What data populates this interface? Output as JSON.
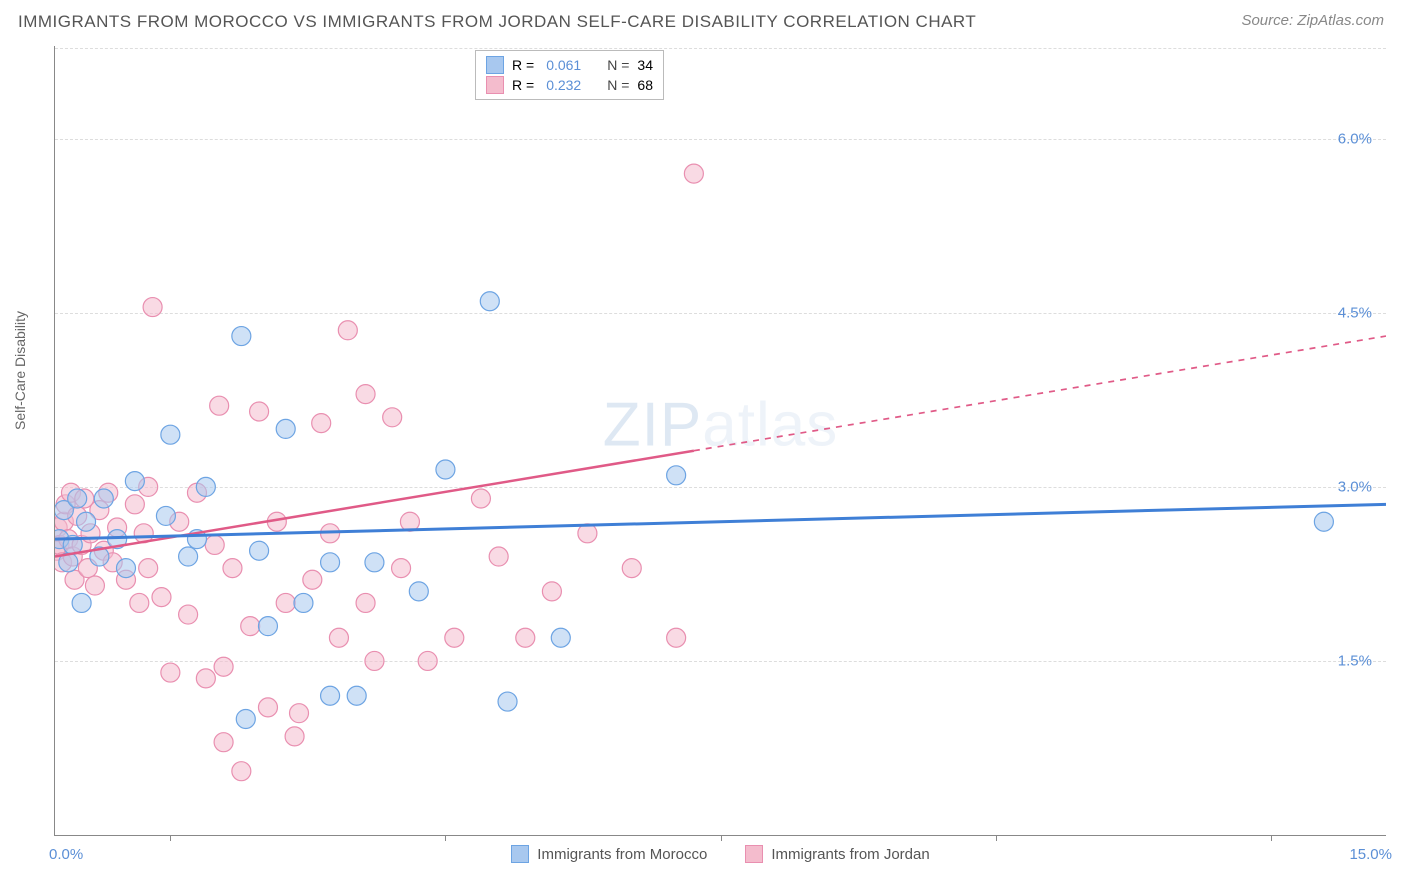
{
  "title": "IMMIGRANTS FROM MOROCCO VS IMMIGRANTS FROM JORDAN SELF-CARE DISABILITY CORRELATION CHART",
  "source": "Source: ZipAtlas.com",
  "watermark": "ZIPatlas",
  "ylabel": "Self-Care Disability",
  "chart": {
    "type": "scatter",
    "xlim": [
      0.0,
      15.0
    ],
    "ylim": [
      0.0,
      6.8
    ],
    "x_ticks": [
      0.0,
      15.0
    ],
    "x_tick_minor_positions": [
      1.3,
      4.4,
      7.5,
      10.6,
      13.7
    ],
    "y_ticks": [
      1.5,
      3.0,
      4.5,
      6.0
    ],
    "x_tick_labels": [
      "0.0%",
      "15.0%"
    ],
    "y_tick_labels": [
      "1.5%",
      "3.0%",
      "4.5%",
      "6.0%"
    ],
    "background_color": "#ffffff",
    "grid_color": "#dddddd",
    "axis_color": "#888888",
    "marker_radius": 9.5,
    "marker_opacity": 0.55,
    "series": [
      {
        "name": "Immigrants from Morocco",
        "color_fill": "#a8c8ef",
        "color_stroke": "#6da4e3",
        "R": "0.061",
        "N": "34",
        "trend": {
          "x1": 0.0,
          "y1": 2.55,
          "x2": 15.0,
          "y2": 2.85,
          "dashed_from_x": null,
          "stroke": "#3f7fd6",
          "stroke_width": 3
        },
        "points": [
          [
            0.05,
            2.55
          ],
          [
            0.1,
            2.8
          ],
          [
            0.15,
            2.35
          ],
          [
            0.2,
            2.5
          ],
          [
            0.25,
            2.9
          ],
          [
            0.3,
            2.0
          ],
          [
            0.35,
            2.7
          ],
          [
            0.5,
            2.4
          ],
          [
            0.55,
            2.9
          ],
          [
            0.7,
            2.55
          ],
          [
            0.8,
            2.3
          ],
          [
            0.9,
            3.05
          ],
          [
            1.25,
            2.75
          ],
          [
            1.3,
            3.45
          ],
          [
            1.5,
            2.4
          ],
          [
            1.6,
            2.55
          ],
          [
            1.7,
            3.0
          ],
          [
            2.1,
            4.3
          ],
          [
            2.15,
            1.0
          ],
          [
            2.3,
            2.45
          ],
          [
            2.4,
            1.8
          ],
          [
            2.6,
            3.5
          ],
          [
            2.8,
            2.0
          ],
          [
            3.1,
            2.35
          ],
          [
            3.1,
            1.2
          ],
          [
            3.4,
            1.2
          ],
          [
            3.6,
            2.35
          ],
          [
            4.1,
            2.1
          ],
          [
            4.4,
            3.15
          ],
          [
            4.9,
            4.6
          ],
          [
            5.1,
            1.15
          ],
          [
            5.7,
            1.7
          ],
          [
            7.0,
            3.1
          ],
          [
            14.3,
            2.7
          ]
        ]
      },
      {
        "name": "Immigrants from Jordan",
        "color_fill": "#f4bccd",
        "color_stroke": "#e98fb0",
        "R": "0.232",
        "N": "68",
        "trend": {
          "x1": 0.0,
          "y1": 2.4,
          "x2": 15.0,
          "y2": 4.3,
          "dashed_from_x": 7.2,
          "stroke": "#e05a87",
          "stroke_width": 2.5
        },
        "points": [
          [
            0.02,
            2.45
          ],
          [
            0.03,
            2.65
          ],
          [
            0.05,
            2.5
          ],
          [
            0.08,
            2.35
          ],
          [
            0.1,
            2.7
          ],
          [
            0.12,
            2.85
          ],
          [
            0.15,
            2.55
          ],
          [
            0.18,
            2.95
          ],
          [
            0.2,
            2.4
          ],
          [
            0.22,
            2.2
          ],
          [
            0.25,
            2.75
          ],
          [
            0.3,
            2.5
          ],
          [
            0.33,
            2.9
          ],
          [
            0.37,
            2.3
          ],
          [
            0.4,
            2.6
          ],
          [
            0.45,
            2.15
          ],
          [
            0.5,
            2.8
          ],
          [
            0.55,
            2.45
          ],
          [
            0.6,
            2.95
          ],
          [
            0.65,
            2.35
          ],
          [
            0.7,
            2.65
          ],
          [
            0.8,
            2.2
          ],
          [
            0.9,
            2.85
          ],
          [
            0.95,
            2.0
          ],
          [
            1.0,
            2.6
          ],
          [
            1.05,
            3.0
          ],
          [
            1.05,
            2.3
          ],
          [
            1.1,
            4.55
          ],
          [
            1.2,
            2.05
          ],
          [
            1.3,
            1.4
          ],
          [
            1.4,
            2.7
          ],
          [
            1.5,
            1.9
          ],
          [
            1.6,
            2.95
          ],
          [
            1.7,
            1.35
          ],
          [
            1.8,
            2.5
          ],
          [
            1.85,
            3.7
          ],
          [
            1.9,
            0.8
          ],
          [
            1.9,
            1.45
          ],
          [
            2.0,
            2.3
          ],
          [
            2.1,
            0.55
          ],
          [
            2.2,
            1.8
          ],
          [
            2.3,
            3.65
          ],
          [
            2.4,
            1.1
          ],
          [
            2.5,
            2.7
          ],
          [
            2.6,
            2.0
          ],
          [
            2.7,
            0.85
          ],
          [
            2.75,
            1.05
          ],
          [
            2.9,
            2.2
          ],
          [
            3.0,
            3.55
          ],
          [
            3.1,
            2.6
          ],
          [
            3.2,
            1.7
          ],
          [
            3.3,
            4.35
          ],
          [
            3.5,
            2.0
          ],
          [
            3.5,
            3.8
          ],
          [
            3.6,
            1.5
          ],
          [
            3.8,
            3.6
          ],
          [
            3.9,
            2.3
          ],
          [
            4.0,
            2.7
          ],
          [
            4.2,
            1.5
          ],
          [
            4.5,
            1.7
          ],
          [
            4.8,
            2.9
          ],
          [
            5.0,
            2.4
          ],
          [
            5.3,
            1.7
          ],
          [
            5.6,
            2.1
          ],
          [
            6.0,
            2.6
          ],
          [
            6.5,
            2.3
          ],
          [
            7.0,
            1.7
          ],
          [
            7.2,
            5.7
          ]
        ]
      }
    ]
  }
}
